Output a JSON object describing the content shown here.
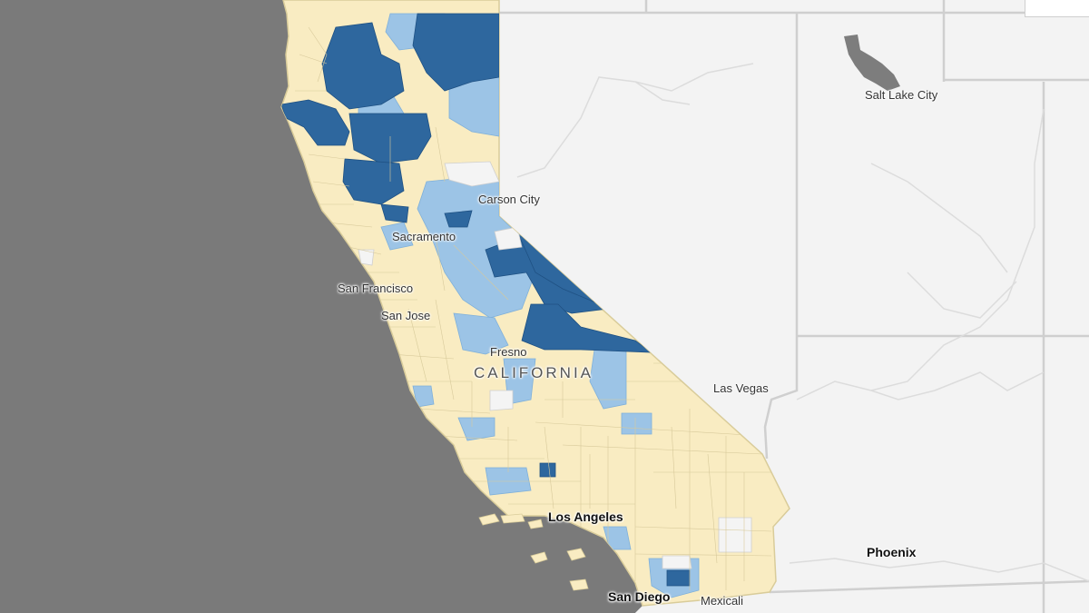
{
  "map": {
    "colors": {
      "ocean": "#7a7a7a",
      "land": "#f3f3f3",
      "state_border": "#d2d2d2",
      "ca_base": "#f9ecc2",
      "ca_outline": "#d9cc9a",
      "dark_blue": "#2e679e",
      "light_blue": "#9cc4e6",
      "white_area": "#f4f4f4",
      "lake": "#808080"
    },
    "state_label": "CALIFORNIA",
    "cities": [
      {
        "key": "salt_lake_city",
        "name": "Salt Lake City"
      },
      {
        "key": "carson_city",
        "name": "Carson City"
      },
      {
        "key": "sacramento",
        "name": "Sacramento"
      },
      {
        "key": "san_francisco",
        "name": "San Francisco"
      },
      {
        "key": "san_jose",
        "name": "San Jose"
      },
      {
        "key": "fresno",
        "name": "Fresno"
      },
      {
        "key": "las_vegas",
        "name": "Las Vegas"
      },
      {
        "key": "los_angeles",
        "name": "Los Angeles"
      },
      {
        "key": "san_diego",
        "name": "San Diego"
      },
      {
        "key": "mexicali",
        "name": "Mexicali"
      },
      {
        "key": "phoenix",
        "name": "Phoenix"
      }
    ]
  }
}
